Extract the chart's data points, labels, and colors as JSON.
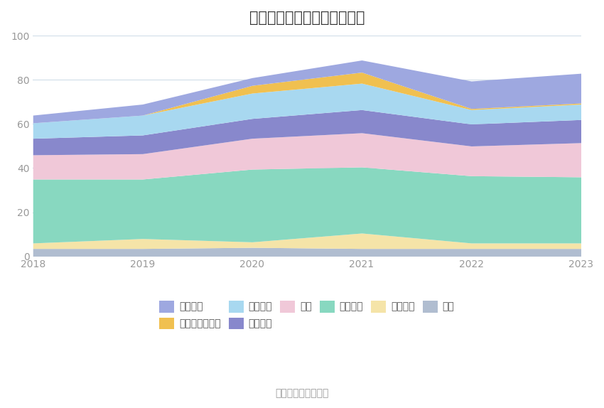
{
  "title": "历年主要资产堆积图（亿元）",
  "years": [
    2018,
    2019,
    2020,
    2021,
    2022,
    2023
  ],
  "series": [
    {
      "name": "其它",
      "color": "#b0bdd0",
      "values": [
        3.5,
        3.5,
        4.0,
        3.5,
        3.5,
        3.5
      ]
    },
    {
      "name": "在建工程",
      "color": "#f5e4a8",
      "values": [
        2.5,
        4.5,
        2.5,
        7.0,
        2.5,
        2.5
      ]
    },
    {
      "name": "固定资产",
      "color": "#88d8c0",
      "values": [
        29.0,
        27.0,
        33.0,
        30.0,
        30.5,
        30.0
      ]
    },
    {
      "name": "存货",
      "color": "#f0c8d8",
      "values": [
        11.0,
        11.5,
        14.0,
        15.5,
        13.5,
        15.5
      ]
    },
    {
      "name": "应收账款",
      "color": "#8888cc",
      "values": [
        7.5,
        8.5,
        9.0,
        10.5,
        10.0,
        10.5
      ]
    },
    {
      "name": "应收票据",
      "color": "#a8d8f0",
      "values": [
        7.0,
        9.0,
        11.5,
        12.0,
        6.5,
        7.0
      ]
    },
    {
      "name": "交易性金融资产",
      "color": "#f0c050",
      "values": [
        0.0,
        0.0,
        3.5,
        5.0,
        0.5,
        0.5
      ]
    },
    {
      "name": "货币资金",
      "color": "#9ea8e0",
      "values": [
        3.5,
        5.0,
        3.5,
        5.5,
        12.5,
        13.5
      ]
    }
  ],
  "ylim": [
    0,
    100
  ],
  "yticks": [
    0,
    20,
    40,
    60,
    80,
    100
  ],
  "source_text": "数据来源：恒生聚源",
  "background_color": "#ffffff",
  "grid_color": "#d0dce8",
  "title_fontsize": 15,
  "tick_fontsize": 10,
  "legend_fontsize": 10,
  "legend_order": [
    7,
    6,
    5,
    4,
    3,
    2,
    1,
    0
  ]
}
